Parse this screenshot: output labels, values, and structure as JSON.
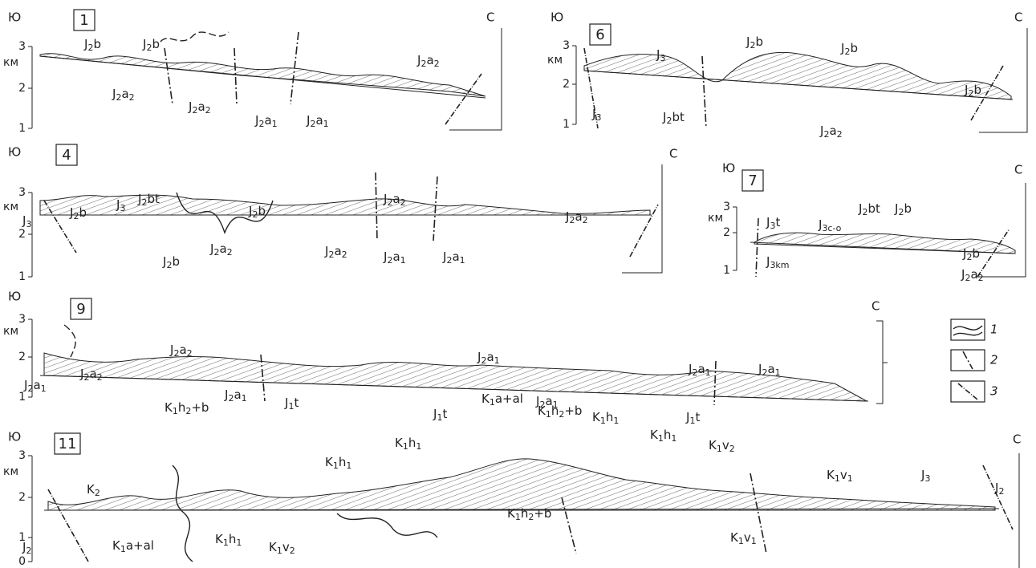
{
  "panels": [
    {
      "number": "1",
      "south": "Ю",
      "north": "С",
      "unit": "км",
      "ticks": [
        3,
        2,
        1
      ],
      "labels": [
        [
          "J",
          "2",
          "b"
        ],
        [
          "J",
          "2",
          "b"
        ],
        [
          "J",
          "2",
          "a",
          "2"
        ],
        [
          "J",
          "2",
          "a",
          "2"
        ],
        [
          "J",
          "2",
          "a",
          "2"
        ],
        [
          "J",
          "2",
          "a",
          "1"
        ],
        [
          "J",
          "2",
          "a",
          "1"
        ]
      ]
    },
    {
      "number": "6",
      "south": "Ю",
      "north": "С",
      "unit": "км",
      "ticks": [
        3,
        2,
        1
      ],
      "labels": [
        [
          "J",
          "3"
        ],
        [
          "J",
          "2",
          "b"
        ],
        [
          "J",
          "2",
          "b"
        ],
        [
          "J",
          "2",
          "b"
        ],
        [
          "J",
          "3"
        ],
        [
          "J",
          "2",
          "bt"
        ],
        [
          "J",
          "2",
          "a",
          "2"
        ]
      ]
    },
    {
      "number": "4",
      "south": "Ю",
      "north": "С",
      "unit": "км",
      "ticks": [
        3,
        2,
        1
      ],
      "labels": [
        [
          "J",
          "3"
        ],
        [
          "J",
          "2",
          "b"
        ],
        [
          "J",
          "3"
        ],
        [
          "J",
          "2",
          "bt"
        ],
        [
          "J",
          "2",
          "b"
        ],
        [
          "J",
          "2",
          "a",
          "2"
        ],
        [
          "J",
          "2",
          "b"
        ],
        [
          "J",
          "2",
          "a",
          "2"
        ],
        [
          "J",
          "2",
          "a",
          "2"
        ],
        [
          "J",
          "2",
          "a",
          "1"
        ],
        [
          "J",
          "2",
          "a",
          "1"
        ],
        [
          "J",
          "2",
          "a",
          "2"
        ]
      ]
    },
    {
      "number": "7",
      "south": "Ю",
      "north": "С",
      "unit": "км",
      "ticks": [
        3,
        2,
        1
      ],
      "labels": [
        [
          "J",
          "3",
          "t"
        ],
        [
          "J",
          "3c-o"
        ],
        [
          "J",
          "2",
          "bt"
        ],
        [
          "J",
          "2",
          "b"
        ],
        [
          "J",
          "2",
          "b"
        ],
        [
          "J",
          "3km"
        ],
        [
          "J",
          "2",
          "a",
          "2"
        ]
      ]
    },
    {
      "number": "9",
      "south": "Ю",
      "north": "С",
      "unit": "км",
      "ticks": [
        3,
        2,
        1
      ],
      "labels": [
        [
          "J",
          "2",
          "a",
          "2"
        ],
        [
          "J",
          "2",
          "a",
          "2"
        ],
        [
          "J",
          "2",
          "a",
          "1"
        ],
        [
          "J",
          "2",
          "a",
          "1"
        ],
        [
          "J",
          "1",
          "t"
        ],
        [
          "J",
          "2",
          "a",
          "1"
        ],
        [
          "J",
          "2",
          "a",
          "1"
        ],
        [
          "J",
          "1",
          "t"
        ],
        [
          "J",
          "1",
          "t"
        ],
        [
          "J",
          "2",
          "a",
          "1"
        ],
        [
          "J",
          "2",
          "a",
          "1"
        ]
      ]
    },
    {
      "number": "11",
      "south": "Ю",
      "north": "С",
      "unit": "км",
      "ticks": [
        3,
        2,
        1,
        0
      ],
      "labels": [
        [
          "K",
          "2"
        ],
        [
          "K",
          "1",
          "h",
          "2",
          "+b"
        ],
        [
          "K",
          "1",
          "a+al"
        ],
        [
          "K",
          "1",
          "h",
          "2",
          "+b"
        ],
        [
          "K",
          "1",
          "h",
          "1"
        ],
        [
          "K",
          "1",
          "h",
          "1"
        ],
        [
          "K",
          "1",
          "h",
          "1"
        ],
        [
          "K",
          "1",
          "v",
          "2"
        ],
        [
          "K",
          "1",
          "h",
          "1"
        ],
        [
          "K",
          "1",
          "v",
          "1"
        ],
        [
          "J",
          "3"
        ],
        [
          "J",
          "2"
        ],
        [
          "J",
          "2"
        ],
        [
          "K",
          "1",
          "a+al"
        ],
        [
          "K",
          "1",
          "h",
          "1"
        ],
        [
          "K",
          "1",
          "v",
          "2"
        ],
        [
          "K",
          "1",
          "h",
          "2",
          "+b"
        ],
        [
          "K",
          "1",
          "v",
          "1"
        ]
      ]
    }
  ],
  "legend": [
    "1",
    "2",
    "3"
  ]
}
